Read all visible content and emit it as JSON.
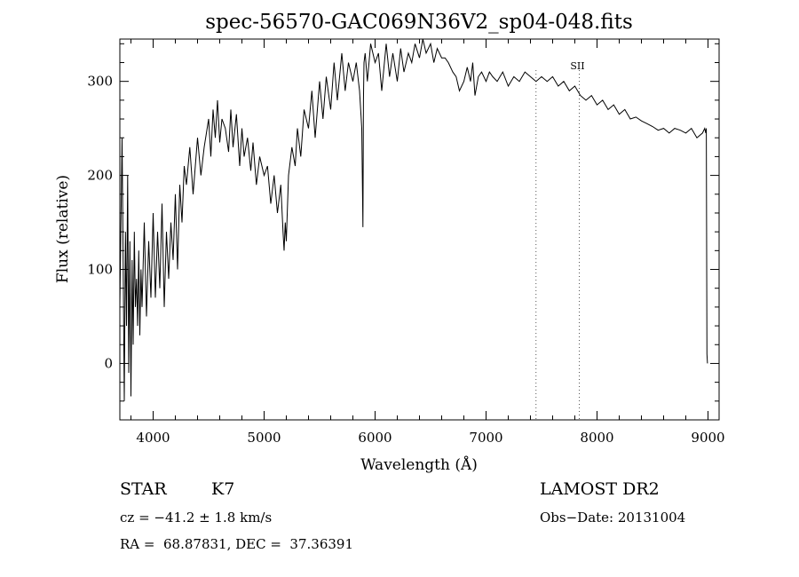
{
  "chart_data": {
    "type": "line",
    "title": "spec-56570-GAC069N36V2_sp04-048.fits",
    "xlabel": "Wavelength (Å)",
    "ylabel": "Flux (relative)",
    "xlim": [
      3700,
      9100
    ],
    "ylim": [
      -60,
      345
    ],
    "x_ticks": [
      4000,
      5000,
      6000,
      7000,
      8000,
      9000
    ],
    "y_ticks": [
      0,
      100,
      200,
      300
    ],
    "x_tick_labels": [
      "4000",
      "5000",
      "6000",
      "7000",
      "8000",
      "9000"
    ],
    "y_tick_labels": [
      "0",
      "100",
      "200",
      "300"
    ],
    "x_minor_step": 200,
    "y_minor_step": 20,
    "grid": false,
    "series": [
      {
        "x": [
          3700,
          3720,
          3730,
          3740,
          3750,
          3760,
          3770,
          3780,
          3790,
          3800,
          3810,
          3820,
          3830,
          3840,
          3850,
          3860,
          3870,
          3880,
          3890,
          3900,
          3920,
          3940,
          3960,
          3980,
          4000,
          4020,
          4040,
          4060,
          4080,
          4100,
          4120,
          4140,
          4160,
          4180,
          4200,
          4220,
          4240,
          4260,
          4280,
          4300,
          4330,
          4360,
          4400,
          4430,
          4460,
          4500,
          4520,
          4540,
          4560,
          4580,
          4600,
          4620,
          4650,
          4680,
          4700,
          4720,
          4750,
          4780,
          4800,
          4820,
          4850,
          4880,
          4900,
          4930,
          4960,
          5000,
          5030,
          5060,
          5090,
          5120,
          5150,
          5170,
          5180,
          5190,
          5200,
          5220,
          5250,
          5280,
          5300,
          5330,
          5360,
          5400,
          5430,
          5460,
          5500,
          5530,
          5560,
          5600,
          5630,
          5660,
          5700,
          5730,
          5760,
          5800,
          5830,
          5860,
          5880,
          5890,
          5895,
          5900,
          5910,
          5930,
          5960,
          6000,
          6030,
          6060,
          6100,
          6130,
          6160,
          6200,
          6230,
          6260,
          6300,
          6330,
          6360,
          6400,
          6430,
          6460,
          6500,
          6530,
          6560,
          6600,
          6630,
          6660,
          6700,
          6730,
          6760,
          6800,
          6830,
          6860,
          6880,
          6900,
          6930,
          6960,
          7000,
          7030,
          7060,
          7100,
          7150,
          7200,
          7250,
          7300,
          7350,
          7400,
          7450,
          7500,
          7550,
          7600,
          7650,
          7700,
          7750,
          7800,
          7850,
          7900,
          7950,
          8000,
          8050,
          8100,
          8150,
          8200,
          8250,
          8300,
          8350,
          8400,
          8450,
          8500,
          8550,
          8600,
          8650,
          8700,
          8750,
          8800,
          8850,
          8900,
          8950,
          8970,
          8980,
          8985,
          8990,
          8995
        ],
        "y": [
          60,
          240,
          100,
          -40,
          140,
          40,
          200,
          -10,
          130,
          -35,
          110,
          20,
          140,
          60,
          90,
          40,
          120,
          30,
          100,
          60,
          150,
          50,
          130,
          70,
          160,
          70,
          140,
          80,
          170,
          60,
          140,
          90,
          150,
          110,
          180,
          100,
          190,
          150,
          210,
          190,
          230,
          180,
          240,
          200,
          230,
          260,
          220,
          270,
          240,
          280,
          235,
          260,
          250,
          225,
          270,
          230,
          265,
          210,
          250,
          220,
          240,
          205,
          235,
          190,
          220,
          200,
          210,
          170,
          200,
          160,
          190,
          140,
          120,
          150,
          130,
          200,
          230,
          210,
          250,
          220,
          270,
          250,
          290,
          240,
          300,
          260,
          305,
          270,
          320,
          280,
          330,
          290,
          320,
          300,
          320,
          290,
          250,
          145,
          280,
          320,
          330,
          300,
          340,
          320,
          330,
          290,
          340,
          305,
          330,
          300,
          335,
          310,
          330,
          320,
          340,
          325,
          345,
          330,
          340,
          320,
          335,
          325,
          325,
          320,
          310,
          305,
          290,
          300,
          315,
          300,
          320,
          285,
          305,
          310,
          300,
          310,
          305,
          300,
          310,
          295,
          305,
          300,
          310,
          305,
          300,
          305,
          300,
          305,
          295,
          300,
          290,
          295,
          285,
          280,
          285,
          275,
          280,
          270,
          275,
          265,
          270,
          260,
          262,
          258,
          255,
          252,
          248,
          250,
          245,
          250,
          248,
          245,
          250,
          240,
          245,
          250,
          245,
          250,
          10,
          0
        ],
        "color": "#000000"
      }
    ],
    "lines": [
      {
        "x": 7450,
        "label": ""
      },
      {
        "x": 7840,
        "label": "SII"
      }
    ]
  },
  "footer": {
    "class_label": "STAR",
    "subclass": "K7",
    "velocity": "cz = −41.2 ± 1.8 km/s",
    "coords": "RA =  68.87831, DEC =  37.36391",
    "survey": "LAMOST DR2",
    "obs_date": "Obs−Date: 20131004"
  }
}
